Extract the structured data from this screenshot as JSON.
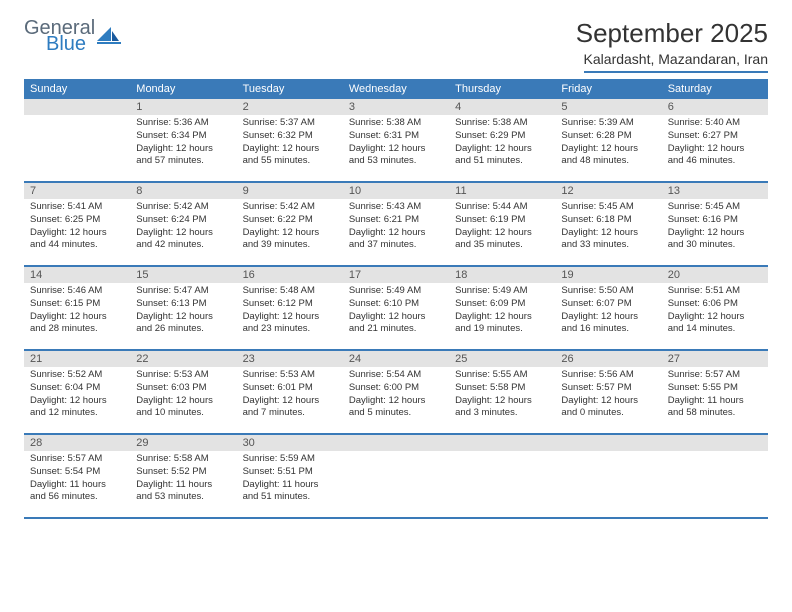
{
  "logo": {
    "general": "General",
    "blue": "Blue"
  },
  "title": "September 2025",
  "location": "Kalardasht, Mazandaran, Iran",
  "colors": {
    "header_bg": "#3a7ab8",
    "header_text": "#ffffff",
    "date_bar_bg": "#e3e3e3",
    "date_bar_text": "#555555",
    "border": "#3a7ab8",
    "body_text": "#333333",
    "logo_general": "#5a6a7a",
    "logo_blue": "#2e7cc0",
    "page_bg": "#ffffff"
  },
  "fonts": {
    "title_size": 26,
    "location_size": 14,
    "day_header_size": 11,
    "date_size": 11,
    "cell_body_size": 9.5
  },
  "dayHeaders": [
    "Sunday",
    "Monday",
    "Tuesday",
    "Wednesday",
    "Thursday",
    "Friday",
    "Saturday"
  ],
  "weeks": [
    [
      {
        "date": "",
        "sunrise": "",
        "sunset": "",
        "daylight": ""
      },
      {
        "date": "1",
        "sunrise": "Sunrise: 5:36 AM",
        "sunset": "Sunset: 6:34 PM",
        "daylight": "Daylight: 12 hours and 57 minutes."
      },
      {
        "date": "2",
        "sunrise": "Sunrise: 5:37 AM",
        "sunset": "Sunset: 6:32 PM",
        "daylight": "Daylight: 12 hours and 55 minutes."
      },
      {
        "date": "3",
        "sunrise": "Sunrise: 5:38 AM",
        "sunset": "Sunset: 6:31 PM",
        "daylight": "Daylight: 12 hours and 53 minutes."
      },
      {
        "date": "4",
        "sunrise": "Sunrise: 5:38 AM",
        "sunset": "Sunset: 6:29 PM",
        "daylight": "Daylight: 12 hours and 51 minutes."
      },
      {
        "date": "5",
        "sunrise": "Sunrise: 5:39 AM",
        "sunset": "Sunset: 6:28 PM",
        "daylight": "Daylight: 12 hours and 48 minutes."
      },
      {
        "date": "6",
        "sunrise": "Sunrise: 5:40 AM",
        "sunset": "Sunset: 6:27 PM",
        "daylight": "Daylight: 12 hours and 46 minutes."
      }
    ],
    [
      {
        "date": "7",
        "sunrise": "Sunrise: 5:41 AM",
        "sunset": "Sunset: 6:25 PM",
        "daylight": "Daylight: 12 hours and 44 minutes."
      },
      {
        "date": "8",
        "sunrise": "Sunrise: 5:42 AM",
        "sunset": "Sunset: 6:24 PM",
        "daylight": "Daylight: 12 hours and 42 minutes."
      },
      {
        "date": "9",
        "sunrise": "Sunrise: 5:42 AM",
        "sunset": "Sunset: 6:22 PM",
        "daylight": "Daylight: 12 hours and 39 minutes."
      },
      {
        "date": "10",
        "sunrise": "Sunrise: 5:43 AM",
        "sunset": "Sunset: 6:21 PM",
        "daylight": "Daylight: 12 hours and 37 minutes."
      },
      {
        "date": "11",
        "sunrise": "Sunrise: 5:44 AM",
        "sunset": "Sunset: 6:19 PM",
        "daylight": "Daylight: 12 hours and 35 minutes."
      },
      {
        "date": "12",
        "sunrise": "Sunrise: 5:45 AM",
        "sunset": "Sunset: 6:18 PM",
        "daylight": "Daylight: 12 hours and 33 minutes."
      },
      {
        "date": "13",
        "sunrise": "Sunrise: 5:45 AM",
        "sunset": "Sunset: 6:16 PM",
        "daylight": "Daylight: 12 hours and 30 minutes."
      }
    ],
    [
      {
        "date": "14",
        "sunrise": "Sunrise: 5:46 AM",
        "sunset": "Sunset: 6:15 PM",
        "daylight": "Daylight: 12 hours and 28 minutes."
      },
      {
        "date": "15",
        "sunrise": "Sunrise: 5:47 AM",
        "sunset": "Sunset: 6:13 PM",
        "daylight": "Daylight: 12 hours and 26 minutes."
      },
      {
        "date": "16",
        "sunrise": "Sunrise: 5:48 AM",
        "sunset": "Sunset: 6:12 PM",
        "daylight": "Daylight: 12 hours and 23 minutes."
      },
      {
        "date": "17",
        "sunrise": "Sunrise: 5:49 AM",
        "sunset": "Sunset: 6:10 PM",
        "daylight": "Daylight: 12 hours and 21 minutes."
      },
      {
        "date": "18",
        "sunrise": "Sunrise: 5:49 AM",
        "sunset": "Sunset: 6:09 PM",
        "daylight": "Daylight: 12 hours and 19 minutes."
      },
      {
        "date": "19",
        "sunrise": "Sunrise: 5:50 AM",
        "sunset": "Sunset: 6:07 PM",
        "daylight": "Daylight: 12 hours and 16 minutes."
      },
      {
        "date": "20",
        "sunrise": "Sunrise: 5:51 AM",
        "sunset": "Sunset: 6:06 PM",
        "daylight": "Daylight: 12 hours and 14 minutes."
      }
    ],
    [
      {
        "date": "21",
        "sunrise": "Sunrise: 5:52 AM",
        "sunset": "Sunset: 6:04 PM",
        "daylight": "Daylight: 12 hours and 12 minutes."
      },
      {
        "date": "22",
        "sunrise": "Sunrise: 5:53 AM",
        "sunset": "Sunset: 6:03 PM",
        "daylight": "Daylight: 12 hours and 10 minutes."
      },
      {
        "date": "23",
        "sunrise": "Sunrise: 5:53 AM",
        "sunset": "Sunset: 6:01 PM",
        "daylight": "Daylight: 12 hours and 7 minutes."
      },
      {
        "date": "24",
        "sunrise": "Sunrise: 5:54 AM",
        "sunset": "Sunset: 6:00 PM",
        "daylight": "Daylight: 12 hours and 5 minutes."
      },
      {
        "date": "25",
        "sunrise": "Sunrise: 5:55 AM",
        "sunset": "Sunset: 5:58 PM",
        "daylight": "Daylight: 12 hours and 3 minutes."
      },
      {
        "date": "26",
        "sunrise": "Sunrise: 5:56 AM",
        "sunset": "Sunset: 5:57 PM",
        "daylight": "Daylight: 12 hours and 0 minutes."
      },
      {
        "date": "27",
        "sunrise": "Sunrise: 5:57 AM",
        "sunset": "Sunset: 5:55 PM",
        "daylight": "Daylight: 11 hours and 58 minutes."
      }
    ],
    [
      {
        "date": "28",
        "sunrise": "Sunrise: 5:57 AM",
        "sunset": "Sunset: 5:54 PM",
        "daylight": "Daylight: 11 hours and 56 minutes."
      },
      {
        "date": "29",
        "sunrise": "Sunrise: 5:58 AM",
        "sunset": "Sunset: 5:52 PM",
        "daylight": "Daylight: 11 hours and 53 minutes."
      },
      {
        "date": "30",
        "sunrise": "Sunrise: 5:59 AM",
        "sunset": "Sunset: 5:51 PM",
        "daylight": "Daylight: 11 hours and 51 minutes."
      },
      {
        "date": "",
        "sunrise": "",
        "sunset": "",
        "daylight": ""
      },
      {
        "date": "",
        "sunrise": "",
        "sunset": "",
        "daylight": ""
      },
      {
        "date": "",
        "sunrise": "",
        "sunset": "",
        "daylight": ""
      },
      {
        "date": "",
        "sunrise": "",
        "sunset": "",
        "daylight": ""
      }
    ]
  ]
}
